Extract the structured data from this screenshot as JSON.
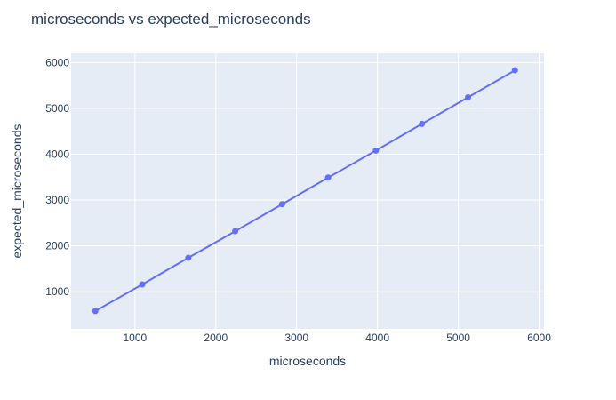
{
  "chart_data": {
    "type": "line",
    "title": "microseconds vs expected_microseconds",
    "xlabel": "microseconds",
    "ylabel": "expected_microseconds",
    "xlim": [
      210,
      6060
    ],
    "ylim": [
      190,
      6200
    ],
    "xticks": [
      1000,
      2000,
      3000,
      4000,
      5000,
      6000
    ],
    "yticks": [
      1000,
      2000,
      3000,
      4000,
      5000,
      6000
    ],
    "x_tick_labels": [
      "1000",
      "2000",
      "3000",
      "4000",
      "5000",
      "6000"
    ],
    "y_tick_labels": [
      "1000",
      "2000",
      "3000",
      "4000",
      "5000",
      "6000"
    ],
    "grid": true,
    "series": [
      {
        "x": [
          510,
          1090,
          1660,
          2240,
          2820,
          3390,
          3980,
          4550,
          5120,
          5700
        ],
        "y": [
          580,
          1160,
          1740,
          2320,
          2910,
          3490,
          4080,
          4660,
          5240,
          5830
        ]
      }
    ],
    "colors": {
      "line": "#636efa",
      "plot_bg": "#e5ecf6",
      "grid": "#ffffff",
      "text": "#2a3f5f"
    }
  }
}
